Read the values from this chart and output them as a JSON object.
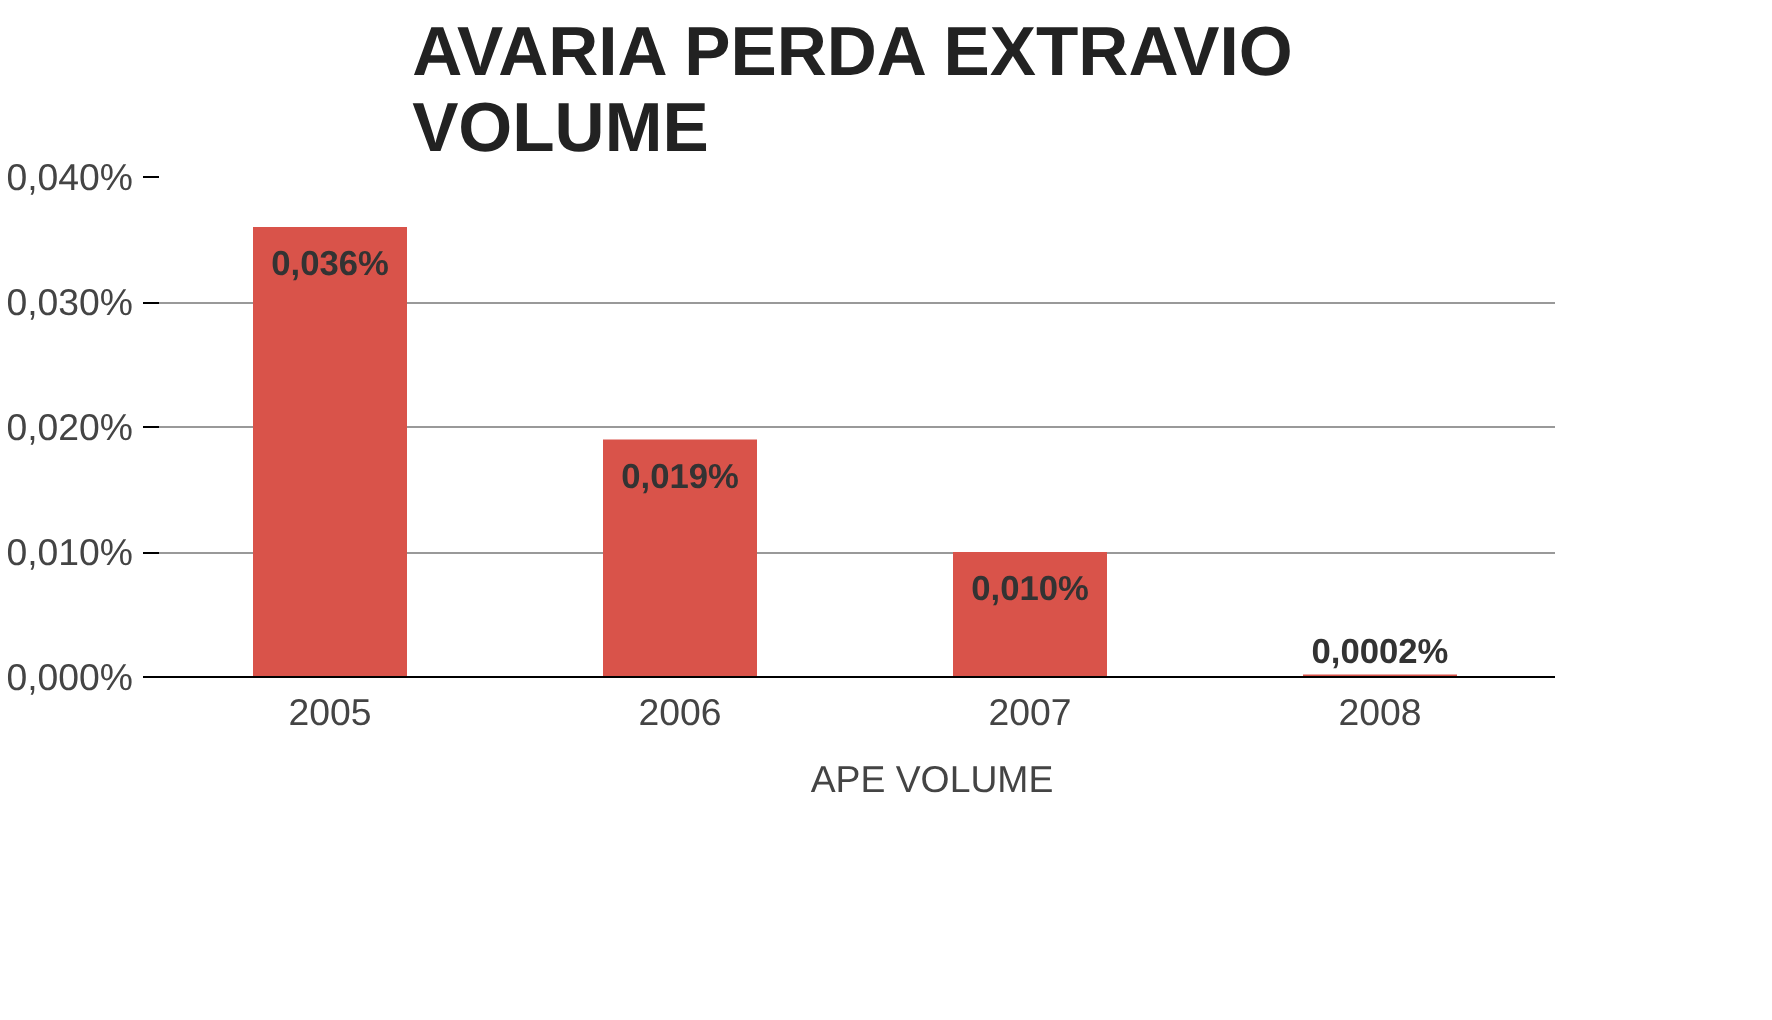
{
  "chart_data": {
    "type": "bar",
    "title": "AVARIA PERDA EXTRAVIO\nVOLUME",
    "categories": [
      "2005",
      "2006",
      "2007",
      "2008"
    ],
    "series": [
      {
        "name": "APE VOLUME",
        "color": "#d9534a",
        "values": [
          0.036,
          0.019,
          0.01,
          0.0002
        ],
        "value_labels": [
          "0,036%",
          "0,019%",
          "0,010%",
          "0,0002%"
        ]
      }
    ],
    "ylim": [
      0,
      0.04
    ],
    "yticks": [
      {
        "value": 0,
        "label": "0,000%"
      },
      {
        "value": 0.01,
        "label": "0,010%"
      },
      {
        "value": 0.02,
        "label": "0,020%"
      },
      {
        "value": 0.03,
        "label": "0,030%"
      },
      {
        "value": 0.04,
        "label": "0,040%"
      }
    ],
    "grid": "y",
    "legend": "bottom"
  }
}
